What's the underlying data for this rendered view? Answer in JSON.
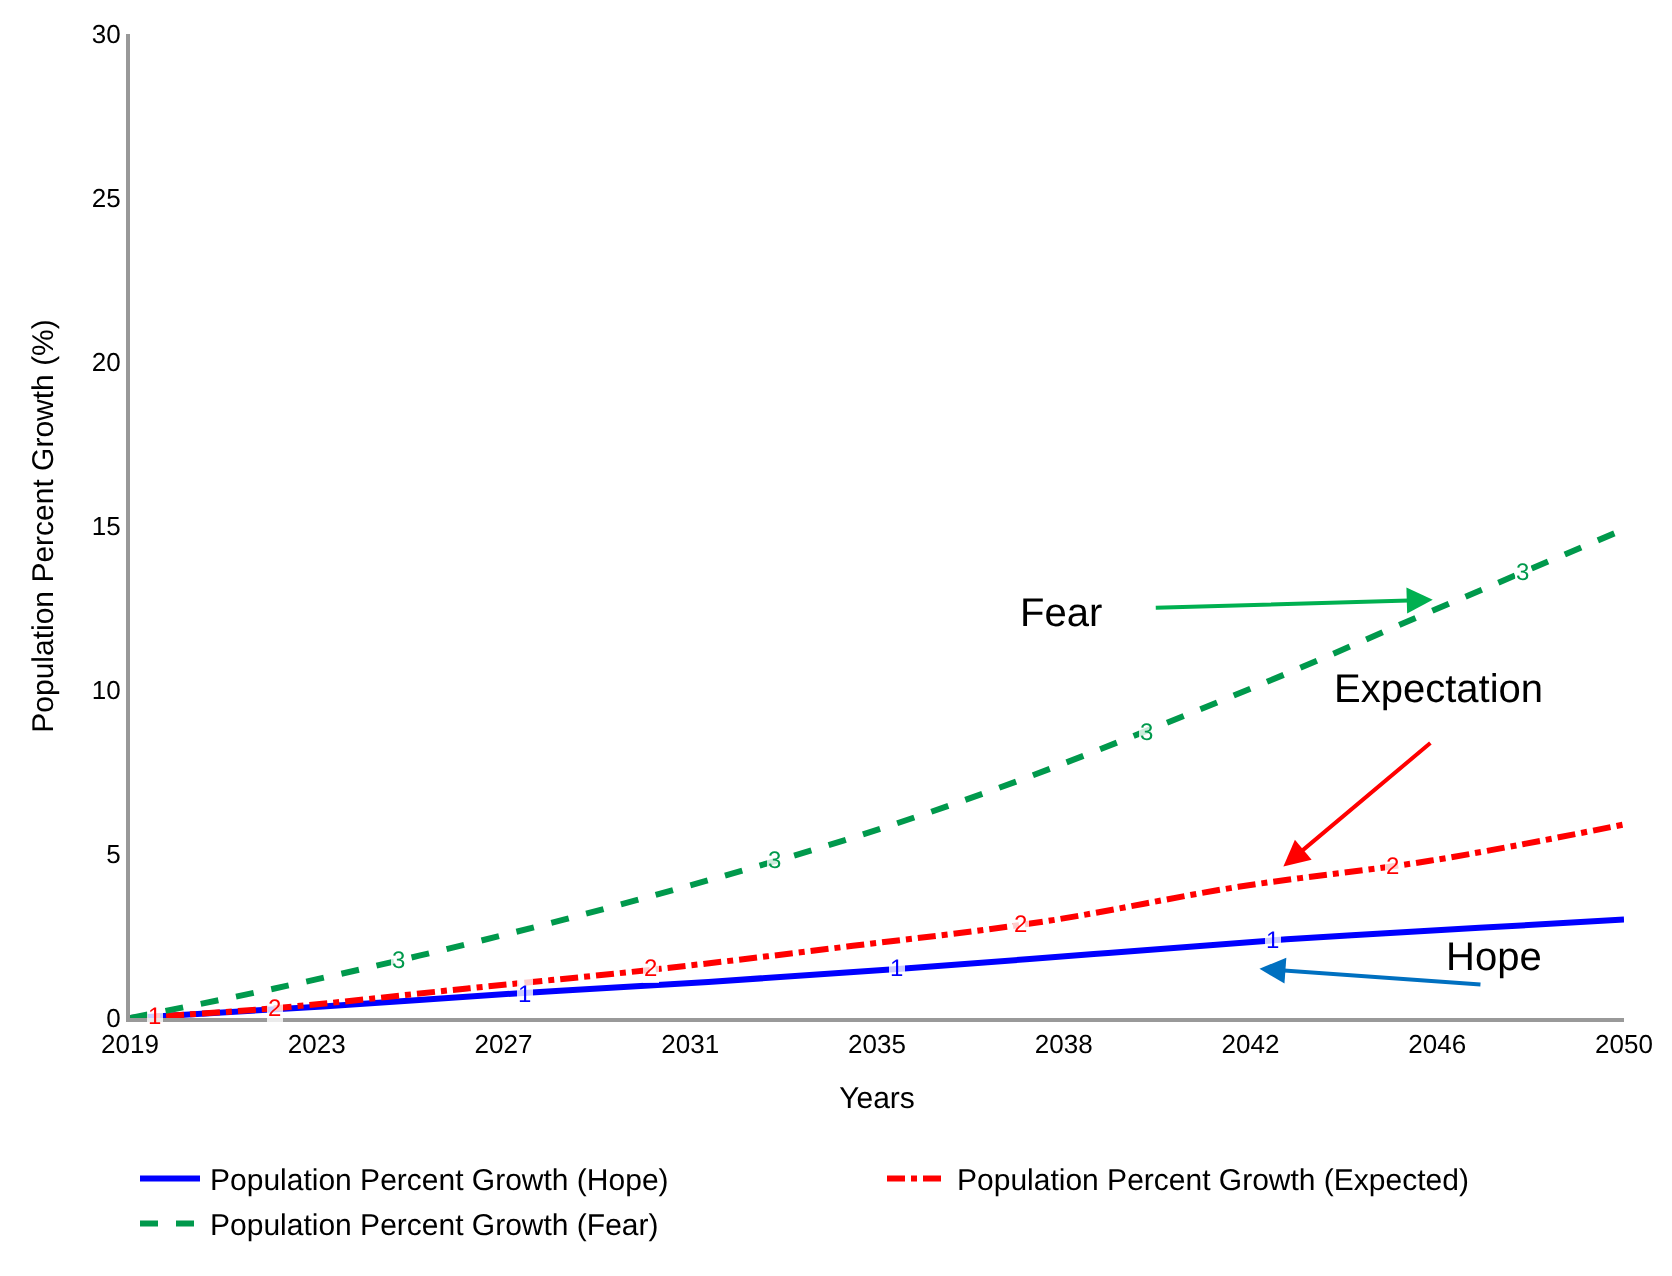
{
  "chart_data": {
    "type": "line",
    "xlabel": "Years",
    "ylabel": "Population Percent Growth (%)",
    "xlim": [
      2019,
      2050
    ],
    "xticks": [
      {
        "value": 2019,
        "label": "2019"
      },
      {
        "value": 2022.875,
        "label": "2023"
      },
      {
        "value": 2026.75,
        "label": "2027"
      },
      {
        "value": 2030.625,
        "label": "2031"
      },
      {
        "value": 2034.5,
        "label": "2035"
      },
      {
        "value": 2038.375,
        "label": "2038"
      },
      {
        "value": 2042.25,
        "label": "2042"
      },
      {
        "value": 2046.125,
        "label": "2046"
      },
      {
        "value": 2050,
        "label": "2050"
      }
    ],
    "ylim": [
      0,
      30
    ],
    "yticks": [
      0,
      5,
      10,
      15,
      20,
      25,
      30
    ],
    "grid": false,
    "legend": "bottom",
    "marker": "none",
    "series": [
      {
        "name": "Population Percent Growth (Hope)",
        "color": "#0000ff",
        "line_style": "solid",
        "x": [
          2019,
          2023,
          2027,
          2031,
          2035,
          2039,
          2043,
          2047,
          2050
        ],
        "values": [
          0,
          0.35,
          0.75,
          1.1,
          1.5,
          1.95,
          2.4,
          2.75,
          3.0
        ]
      },
      {
        "name": "Population Percent Growth (Expected)",
        "color": "#ff0000",
        "line_style": "dashdot",
        "x": [
          2019,
          2022,
          2026,
          2030,
          2034,
          2038,
          2042,
          2046,
          2050
        ],
        "values": [
          0,
          0.3,
          0.9,
          1.5,
          2.2,
          2.95,
          4.0,
          4.8,
          5.9
        ]
      },
      {
        "name": "Population Percent Growth (Fear)",
        "color": "#00994c",
        "line_style": "dashed",
        "x": [
          2019,
          2022,
          2025,
          2028,
          2031,
          2034,
          2037,
          2040,
          2043,
          2046,
          2050
        ],
        "values": [
          0,
          0.9,
          1.9,
          3.0,
          4.2,
          5.5,
          7.0,
          8.7,
          10.5,
          12.4,
          14.9
        ]
      }
    ],
    "annotations": [
      "Fear",
      "Expectation",
      "Hope",
      {
        "text": "1",
        "x": 2019.5,
        "y": 0.05
      },
      {
        "text": "1",
        "x": 2027.2,
        "y": 0.75
      },
      {
        "text": "1",
        "x": 2034.9,
        "y": 1.5
      },
      {
        "text": "1",
        "x": 2042.7,
        "y": 2.4
      },
      {
        "text": "2",
        "x": 2022,
        "y": 0.3
      },
      {
        "text": "2",
        "x": 2029.8,
        "y": 1.5
      },
      {
        "text": "2",
        "x": 2037.5,
        "y": 2.85
      },
      {
        "text": "2",
        "x": 2045.2,
        "y": 4.65
      },
      {
        "text": "3",
        "x": 2024.6,
        "y": 1.75
      },
      {
        "text": "3",
        "x": 2032.4,
        "y": 4.8
      },
      {
        "text": "3",
        "x": 2040.1,
        "y": 8.7
      },
      {
        "text": "3",
        "x": 2047.9,
        "y": 13.6
      }
    ]
  }
}
